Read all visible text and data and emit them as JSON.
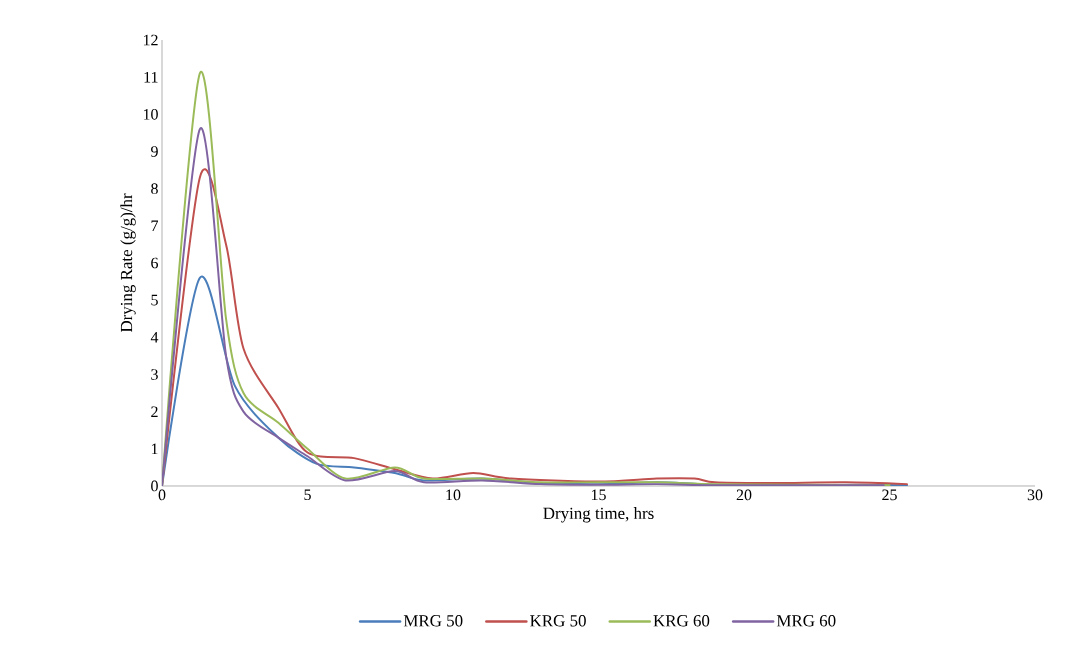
{
  "chart_data": {
    "type": "line",
    "xlabel": "Drying time, hrs",
    "ylabel": "Drying Rate (g/g)/hr",
    "xlim": [
      0,
      30
    ],
    "ylim": [
      0,
      12
    ],
    "xticks": [
      0,
      5,
      10,
      15,
      20,
      25,
      30
    ],
    "yticks": [
      0,
      1,
      2,
      3,
      4,
      5,
      6,
      7,
      8,
      9,
      10,
      11,
      12
    ],
    "grid": false,
    "legend": "bottom",
    "marker": "none",
    "line_style": "solid",
    "series": [
      {
        "name": "MRG 50",
        "color": "#4a7ebb",
        "x": [
          0,
          1.3,
          2.5,
          4,
          5.3,
          6.6,
          8,
          9,
          11,
          13,
          15,
          17,
          18.5,
          20,
          22,
          24,
          25.6
        ],
        "values": [
          0,
          5.6,
          2.7,
          1.3,
          0.6,
          0.5,
          0.35,
          0.15,
          0.2,
          0.08,
          0.05,
          0.1,
          0.05,
          0.03,
          0.02,
          0.03,
          0.02
        ]
      },
      {
        "name": "KRG 50",
        "color": "#c0504d",
        "x": [
          0,
          1.3,
          2.2,
          2.8,
          4,
          5,
          6.6,
          8,
          9.3,
          10.7,
          12,
          15,
          17,
          18.3,
          19,
          21,
          23.5,
          25.6
        ],
        "values": [
          0,
          8.3,
          6.5,
          3.7,
          2.1,
          0.9,
          0.75,
          0.45,
          0.2,
          0.35,
          0.2,
          0.12,
          0.2,
          0.2,
          0.1,
          0.08,
          0.1,
          0.05
        ]
      },
      {
        "name": "KRG 60",
        "color": "#9bbb59",
        "x": [
          0,
          1.3,
          2.2,
          2.8,
          4,
          5,
          6.3,
          8,
          9,
          11,
          13,
          15,
          17,
          19,
          22,
          25
        ],
        "values": [
          0,
          11.1,
          4.5,
          2.5,
          1.7,
          1.0,
          0.2,
          0.5,
          0.2,
          0.2,
          0.1,
          0.1,
          0.1,
          0.05,
          0.03,
          0.02
        ]
      },
      {
        "name": "MRG 60",
        "color": "#8064a2",
        "x": [
          0,
          1.3,
          2.2,
          2.8,
          4,
          5,
          6.3,
          8,
          9,
          11,
          13,
          15,
          17,
          19,
          22,
          24.8
        ],
        "values": [
          0,
          9.6,
          3.5,
          2.0,
          1.3,
          0.8,
          0.15,
          0.4,
          0.1,
          0.15,
          0.05,
          0.03,
          0.05,
          0.02,
          0.02,
          0.02
        ]
      }
    ]
  }
}
